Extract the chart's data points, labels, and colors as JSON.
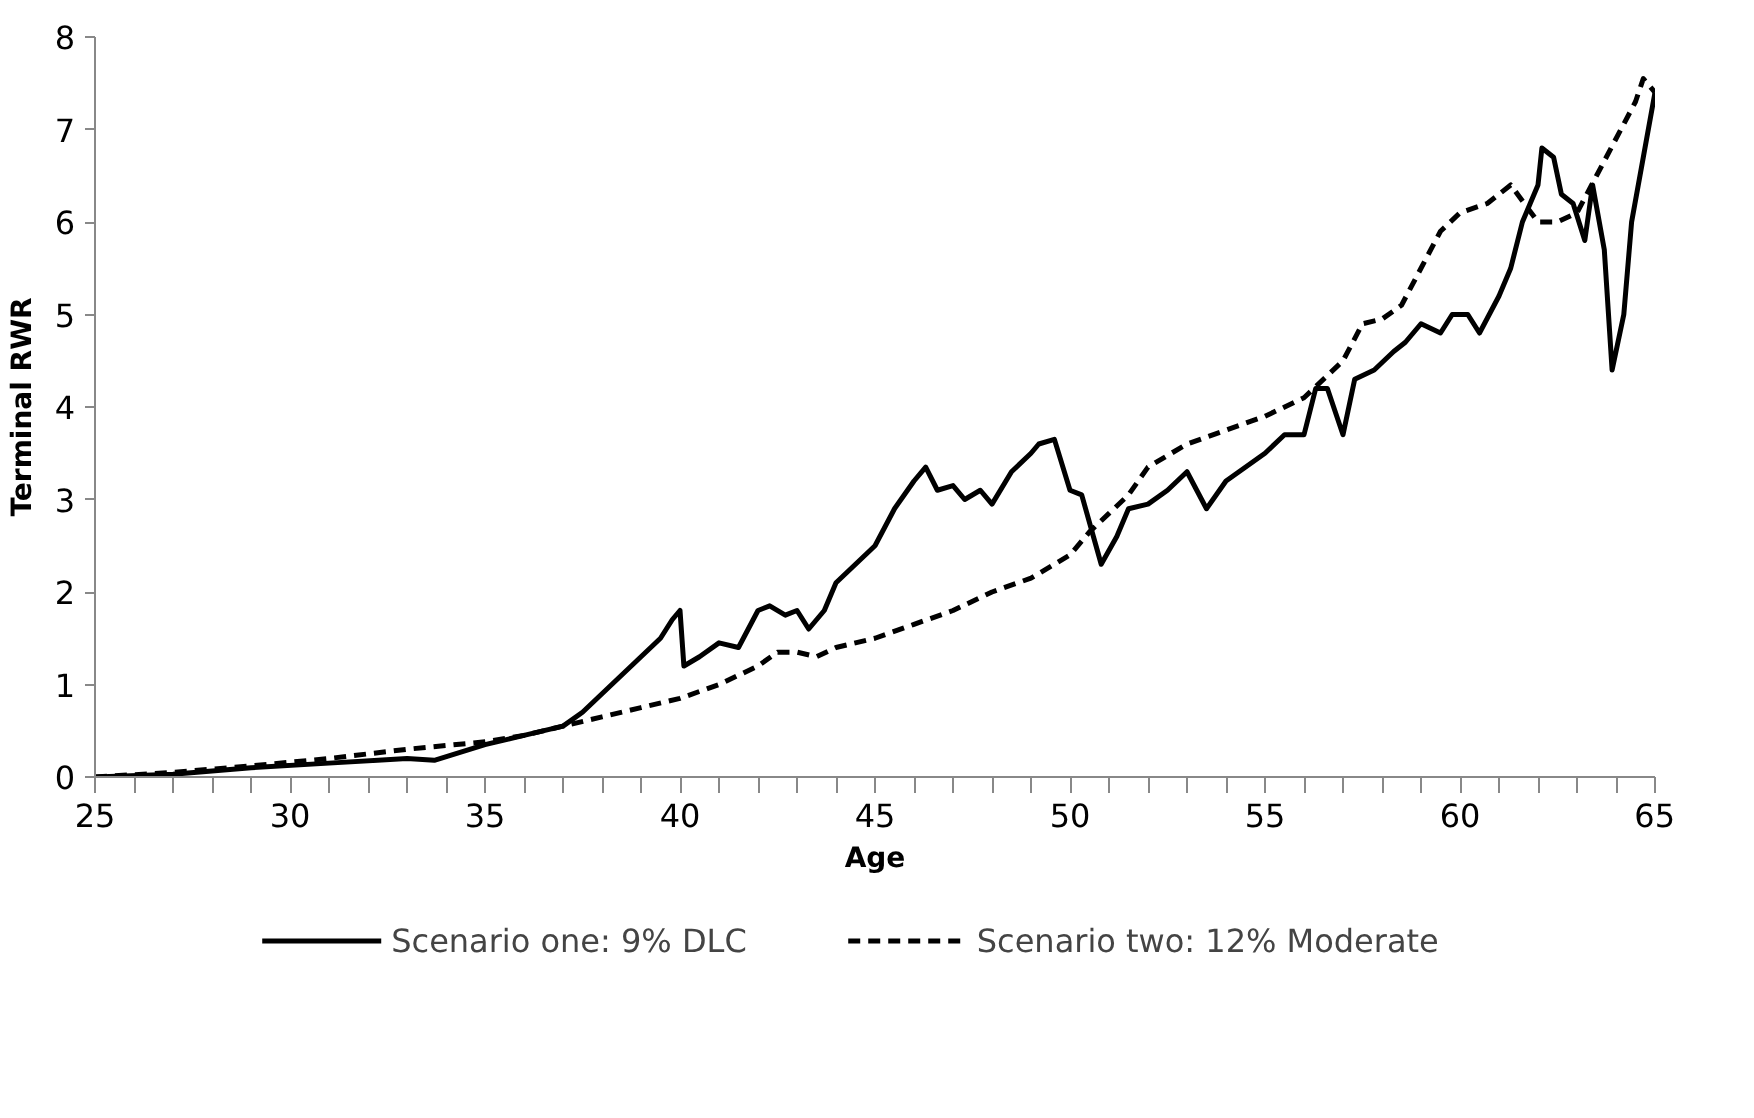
{
  "chart_data": {
    "type": "line",
    "xlabel": "Age",
    "ylabel": "Terminal RWR",
    "xlim": [
      25,
      65
    ],
    "ylim": [
      0,
      8
    ],
    "xticks": [
      25,
      {
        "value": 26,
        "label": null
      },
      {
        "value": 27,
        "label": null
      },
      {
        "value": 28,
        "label": null
      },
      {
        "value": 29,
        "label": null
      },
      30,
      {
        "value": 31,
        "label": null
      },
      {
        "value": 32,
        "label": null
      },
      {
        "value": 33,
        "label": null
      },
      {
        "value": 34,
        "label": null
      },
      35,
      {
        "value": 36,
        "label": null
      },
      {
        "value": 37,
        "label": null
      },
      {
        "value": 38,
        "label": null
      },
      {
        "value": 39,
        "label": null
      },
      40,
      {
        "value": 41,
        "label": null
      },
      {
        "value": 42,
        "label": null
      },
      {
        "value": 43,
        "label": null
      },
      {
        "value": 44,
        "label": null
      },
      45,
      {
        "value": 46,
        "label": null
      },
      {
        "value": 47,
        "label": null
      },
      {
        "value": 48,
        "label": null
      },
      {
        "value": 49,
        "label": null
      },
      50,
      {
        "value": 51,
        "label": null
      },
      {
        "value": 52,
        "label": null
      },
      {
        "value": 53,
        "label": null
      },
      {
        "value": 54,
        "label": null
      },
      55,
      {
        "value": 56,
        "label": null
      },
      {
        "value": 57,
        "label": null
      },
      {
        "value": 58,
        "label": null
      },
      {
        "value": 59,
        "label": null
      },
      60,
      {
        "value": 61,
        "label": null
      },
      {
        "value": 62,
        "label": null
      },
      {
        "value": 63,
        "label": null
      },
      {
        "value": 64,
        "label": null
      },
      65
    ],
    "yticks": [
      0,
      1,
      2,
      3,
      4,
      5,
      6,
      7,
      8
    ],
    "grid": false,
    "legend": "bottom",
    "marker": "none",
    "series": [
      {
        "name": "Scenario one: 9% DLC",
        "color": "#000000",
        "line_style": "solid",
        "x": [
          25,
          27,
          29,
          31,
          33,
          33.7,
          35,
          36,
          37,
          37.5,
          38,
          38.5,
          39,
          39.5,
          39.8,
          40,
          40.1,
          40.5,
          41,
          41.5,
          42,
          42.3,
          42.7,
          43,
          43.3,
          43.7,
          44,
          44.5,
          45,
          45.5,
          46,
          46.3,
          46.6,
          47,
          47.3,
          47.7,
          48,
          48.5,
          49,
          49.2,
          49.6,
          50,
          50.3,
          50.6,
          50.8,
          51.2,
          51.5,
          52,
          52.5,
          53,
          53.5,
          54,
          55,
          55.5,
          56,
          56.3,
          56.6,
          57,
          57.3,
          57.8,
          58.3,
          58.6,
          59,
          59.5,
          59.8,
          60.2,
          60.5,
          61,
          61.3,
          61.6,
          62,
          62.1,
          62.4,
          62.6,
          62.9,
          63.2,
          63.4,
          63.7,
          63.9,
          64.2,
          64.4,
          64.7,
          65
        ],
        "values": [
          0,
          0.03,
          0.1,
          0.15,
          0.2,
          0.18,
          0.35,
          0.45,
          0.55,
          0.7,
          0.9,
          1.1,
          1.3,
          1.5,
          1.7,
          1.8,
          1.2,
          1.3,
          1.45,
          1.4,
          1.8,
          1.85,
          1.75,
          1.8,
          1.6,
          1.8,
          2.1,
          2.3,
          2.5,
          2.9,
          3.2,
          3.35,
          3.1,
          3.15,
          3.0,
          3.1,
          2.95,
          3.3,
          3.5,
          3.6,
          3.65,
          3.1,
          3.05,
          2.6,
          2.3,
          2.6,
          2.9,
          2.95,
          3.1,
          3.3,
          2.9,
          3.2,
          3.5,
          3.7,
          3.7,
          4.2,
          4.2,
          3.7,
          4.3,
          4.4,
          4.6,
          4.7,
          4.9,
          4.8,
          5.0,
          5.0,
          4.8,
          5.2,
          5.5,
          6.0,
          6.4,
          6.8,
          6.7,
          6.3,
          6.2,
          5.8,
          6.4,
          5.7,
          4.4,
          5.0,
          6.0,
          6.7,
          7.4
        ]
      },
      {
        "name": "Scenario two: 12% Moderate",
        "color": "#000000",
        "line_style": "dashed",
        "x": [
          25,
          27,
          29,
          31,
          33,
          35,
          36,
          37,
          38,
          39,
          40,
          41,
          42,
          42.5,
          43,
          43.5,
          44,
          45,
          46,
          47,
          48,
          49,
          50,
          50.5,
          51,
          51.5,
          52,
          53,
          54,
          55,
          56,
          57,
          57.5,
          58,
          58.5,
          59,
          59.5,
          60,
          60.7,
          61.3,
          62,
          62.5,
          63,
          63.5,
          64,
          64.5,
          64.7,
          65
        ],
        "values": [
          0,
          0.05,
          0.12,
          0.2,
          0.3,
          0.38,
          0.45,
          0.55,
          0.65,
          0.75,
          0.85,
          1.0,
          1.2,
          1.35,
          1.35,
          1.3,
          1.4,
          1.5,
          1.65,
          1.8,
          2.0,
          2.15,
          2.4,
          2.65,
          2.85,
          3.05,
          3.35,
          3.6,
          3.75,
          3.9,
          4.1,
          4.5,
          4.9,
          4.95,
          5.1,
          5.5,
          5.9,
          6.1,
          6.2,
          6.4,
          6.0,
          6.0,
          6.1,
          6.5,
          6.9,
          7.3,
          7.55,
          7.4
        ]
      }
    ]
  }
}
